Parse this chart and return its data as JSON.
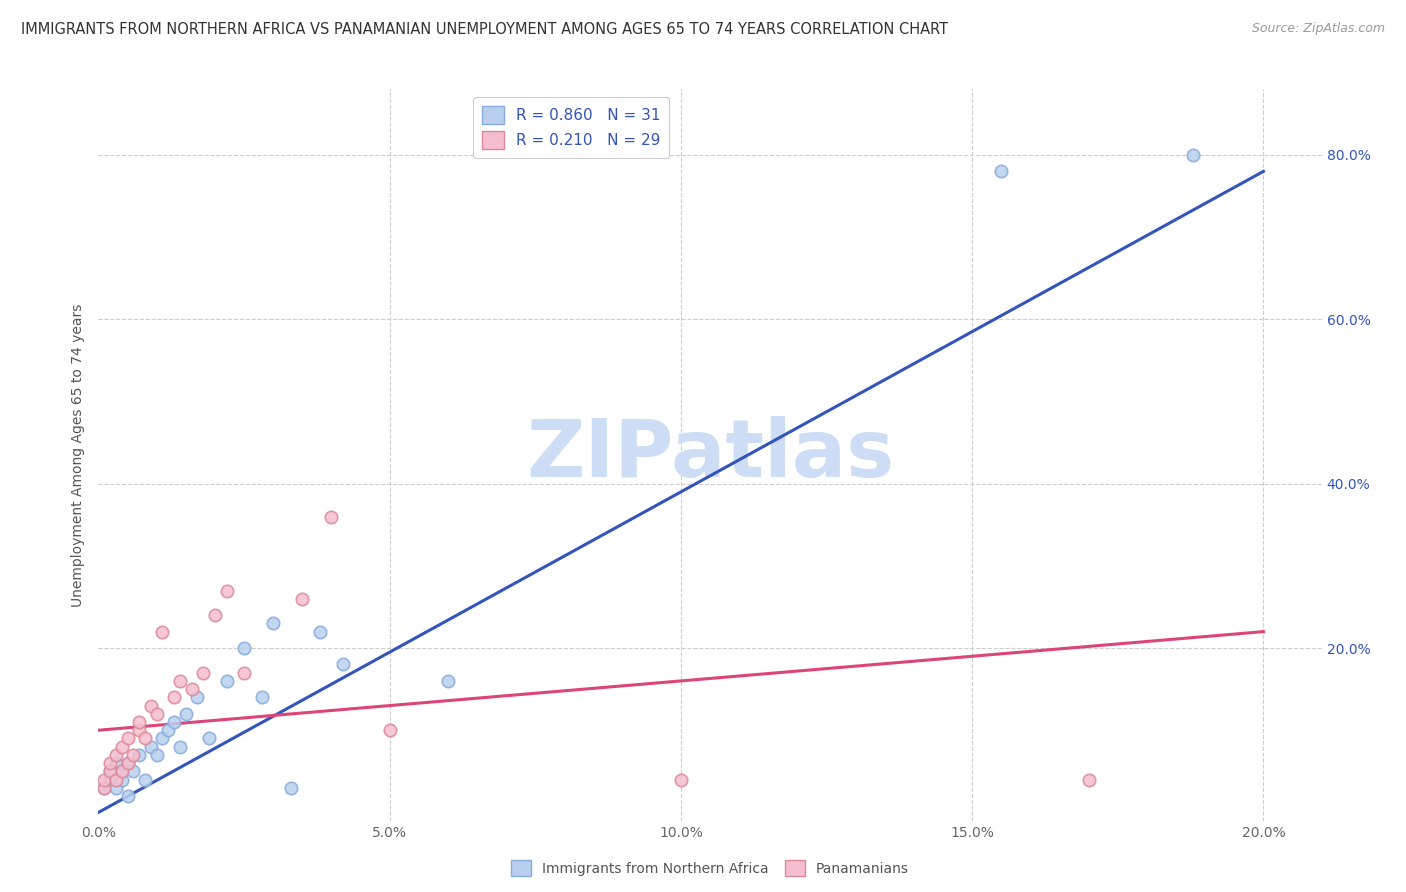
{
  "title": "IMMIGRANTS FROM NORTHERN AFRICA VS PANAMANIAN UNEMPLOYMENT AMONG AGES 65 TO 74 YEARS CORRELATION CHART",
  "source": "Source: ZipAtlas.com",
  "ylabel": "Unemployment Among Ages 65 to 74 years",
  "xlim": [
    0.0,
    0.21
  ],
  "ylim": [
    -0.01,
    0.88
  ],
  "xtick_labels": [
    "0.0%",
    "5.0%",
    "10.0%",
    "15.0%",
    "20.0%"
  ],
  "xtick_vals": [
    0.0,
    0.05,
    0.1,
    0.15,
    0.2
  ],
  "ytick_labels": [
    "20.0%",
    "40.0%",
    "60.0%",
    "80.0%"
  ],
  "ytick_vals": [
    0.2,
    0.4,
    0.6,
    0.8
  ],
  "watermark": "ZIPatlas",
  "blue_scatter_x": [
    0.001,
    0.002,
    0.002,
    0.003,
    0.003,
    0.004,
    0.004,
    0.005,
    0.005,
    0.006,
    0.007,
    0.008,
    0.009,
    0.01,
    0.011,
    0.012,
    0.013,
    0.014,
    0.015,
    0.017,
    0.019,
    0.022,
    0.025,
    0.028,
    0.03,
    0.033,
    0.038,
    0.042,
    0.06,
    0.155,
    0.188
  ],
  "blue_scatter_y": [
    0.03,
    0.04,
    0.05,
    0.03,
    0.06,
    0.04,
    0.05,
    0.02,
    0.06,
    0.05,
    0.07,
    0.04,
    0.08,
    0.07,
    0.09,
    0.1,
    0.11,
    0.08,
    0.12,
    0.14,
    0.09,
    0.16,
    0.2,
    0.14,
    0.23,
    0.03,
    0.22,
    0.18,
    0.16,
    0.78,
    0.8
  ],
  "pink_scatter_x": [
    0.001,
    0.001,
    0.002,
    0.002,
    0.003,
    0.003,
    0.004,
    0.004,
    0.005,
    0.005,
    0.006,
    0.007,
    0.007,
    0.008,
    0.009,
    0.01,
    0.011,
    0.013,
    0.014,
    0.016,
    0.018,
    0.02,
    0.022,
    0.025,
    0.035,
    0.04,
    0.05,
    0.1,
    0.17
  ],
  "pink_scatter_y": [
    0.03,
    0.04,
    0.05,
    0.06,
    0.04,
    0.07,
    0.05,
    0.08,
    0.06,
    0.09,
    0.07,
    0.1,
    0.11,
    0.09,
    0.13,
    0.12,
    0.22,
    0.14,
    0.16,
    0.15,
    0.17,
    0.24,
    0.27,
    0.17,
    0.26,
    0.36,
    0.1,
    0.04,
    0.04
  ],
  "blue_line_x": [
    0.0,
    0.2
  ],
  "blue_line_y": [
    0.0,
    0.78
  ],
  "pink_line_x": [
    0.0,
    0.2
  ],
  "pink_line_y": [
    0.1,
    0.22
  ],
  "scatter_size": 80,
  "background_color": "#ffffff",
  "grid_color": "#cccccc",
  "title_color": "#333333",
  "source_color": "#999999",
  "blue_scatter_color": "#b8d0ee",
  "blue_scatter_edge": "#88aadd",
  "pink_scatter_color": "#f5bece",
  "pink_scatter_edge": "#dd8899",
  "blue_line_color": "#3355bb",
  "pink_line_color": "#dd4477",
  "watermark_color": "#ccddf5",
  "right_tick_color": "#3355bb",
  "legend1_label_blue": "R = 0.860   N = 31",
  "legend1_label_pink": "R = 0.210   N = 29",
  "legend2_label_blue": "Immigrants from Northern Africa",
  "legend2_label_pink": "Panamanians"
}
